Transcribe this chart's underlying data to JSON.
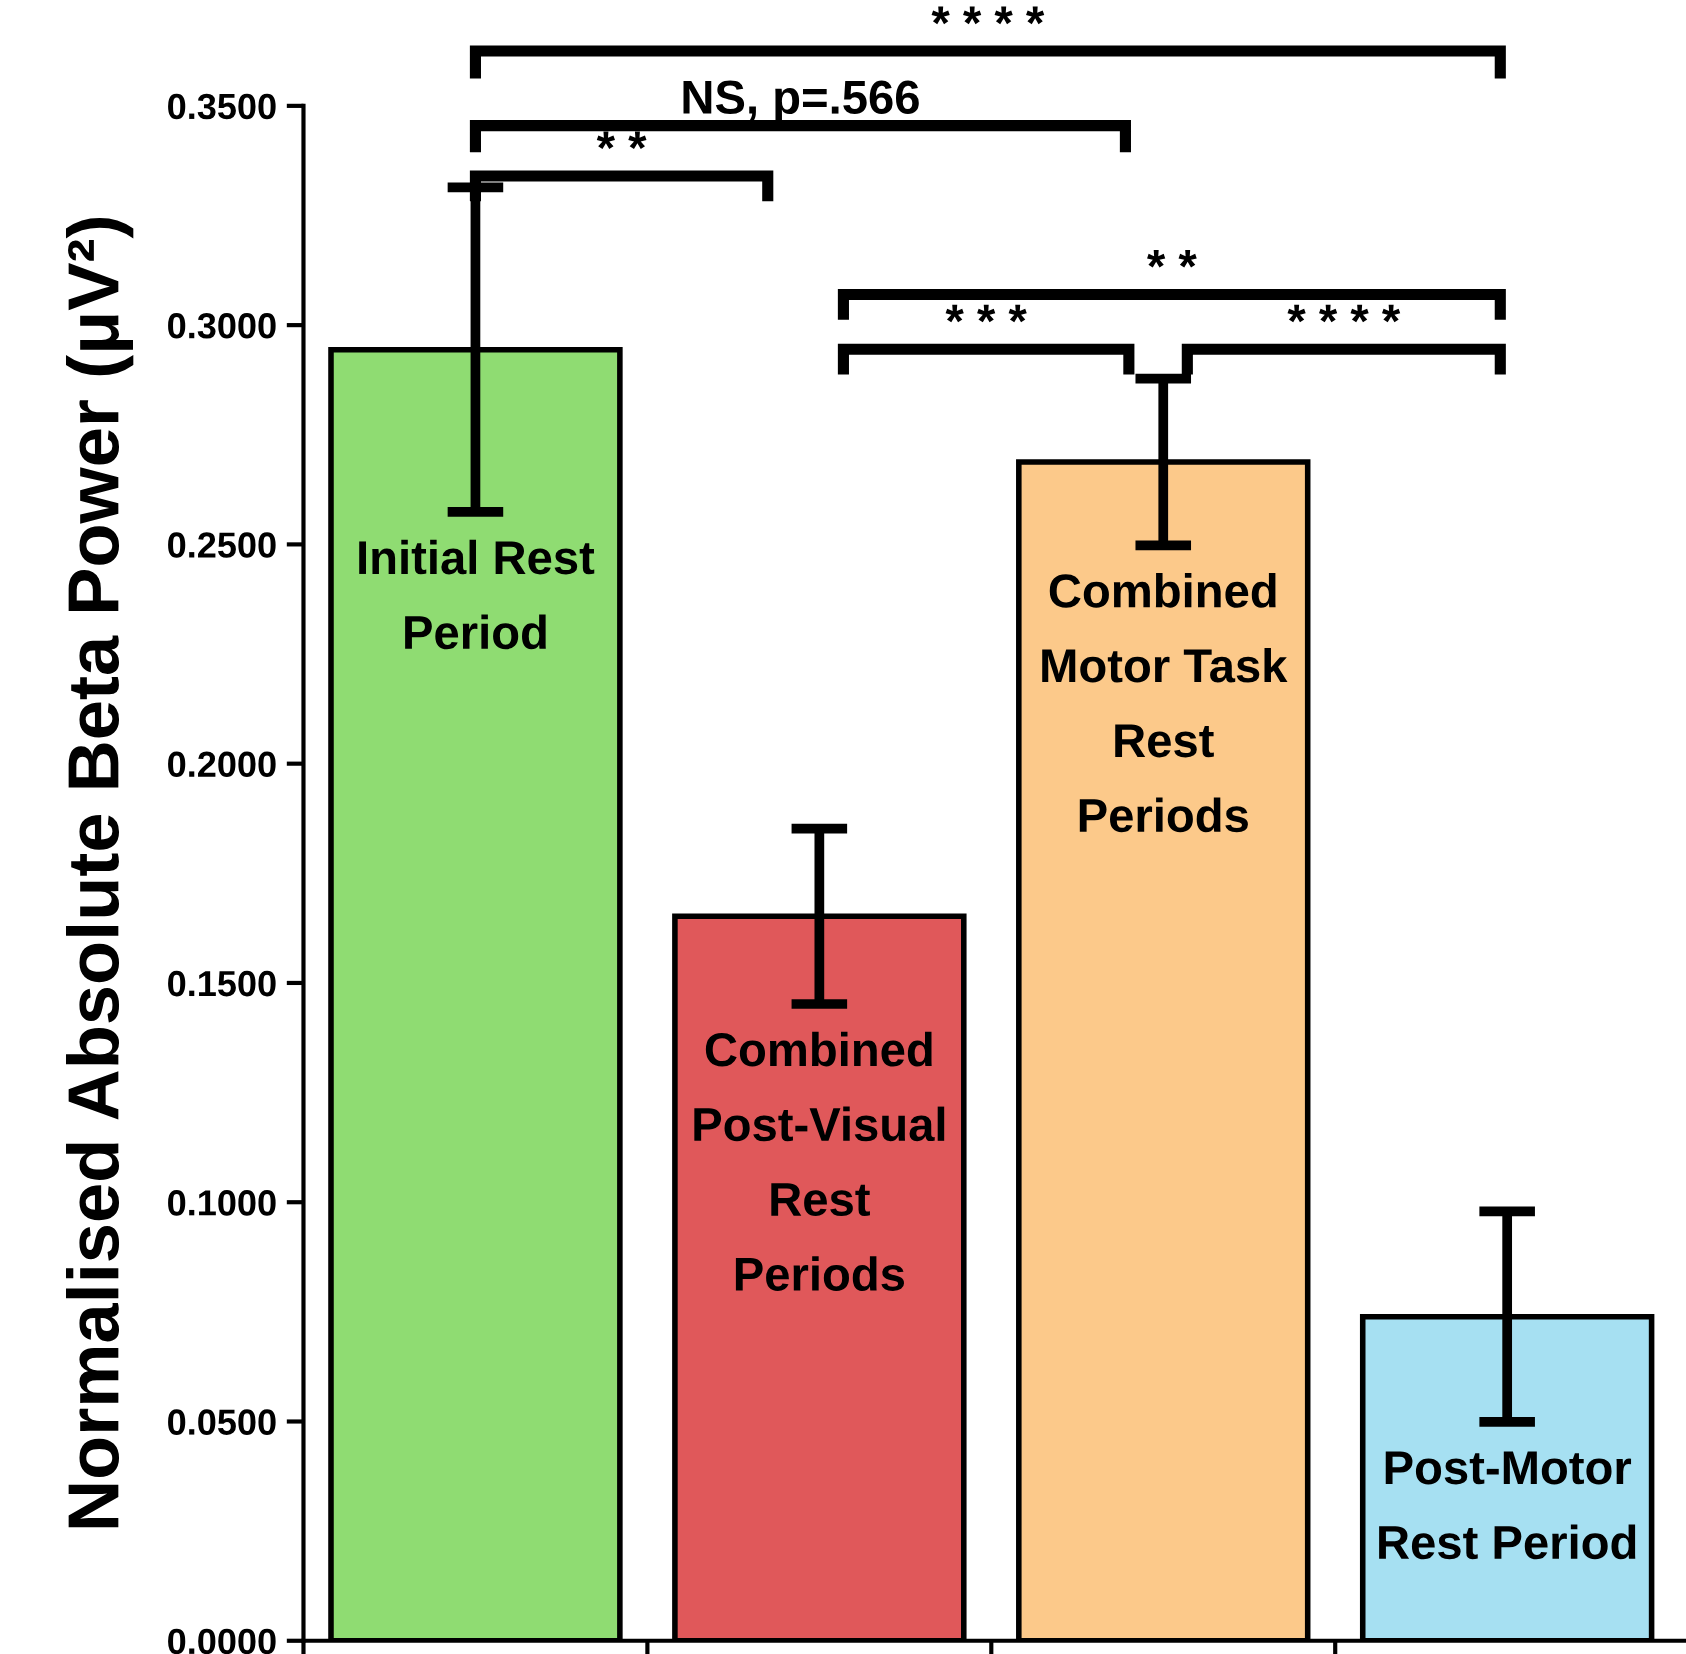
{
  "chart_data": {
    "type": "bar",
    "ylabel": "Normalised Absolute Beta Power (μV²)",
    "categories": [
      "Initial Rest\nPeriod",
      "Combined\nPost-Visual\nRest\nPeriods",
      "Combined\nMotor Task\nRest\nPeriods",
      "Post-Motor\nRest Period"
    ],
    "values": [
      0.2944,
      0.1652,
      0.2688,
      0.0739
    ],
    "errors": [
      0.037,
      0.02,
      0.019,
      0.024
    ],
    "colors": [
      "#8fdc72",
      "#e0585a",
      "#fcc98a",
      "#a6e0f2"
    ],
    "ylim": [
      0,
      0.35
    ],
    "yticks": [
      {
        "value": 0,
        "label": "0.0000"
      },
      {
        "value": 0.05,
        "label": "0.0500"
      },
      {
        "value": 0.1,
        "label": "0.1000"
      },
      {
        "value": 0.15,
        "label": "0.1500"
      },
      {
        "value": 0.2,
        "label": "0.2000"
      },
      {
        "value": 0.25,
        "label": "0.2500"
      },
      {
        "value": 0.3,
        "label": "0.3000"
      },
      {
        "value": 0.35,
        "label": "0.3500"
      }
    ],
    "tick_labels": "y",
    "grid": false,
    "legend": false,
    "annotations": [
      "* * * *",
      "NS, p=.566",
      "* *",
      "* *",
      "* * *",
      "* * * *"
    ]
  }
}
